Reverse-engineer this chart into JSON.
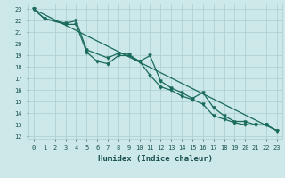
{
  "xlabel": "Humidex (Indice chaleur)",
  "xlim": [
    -0.5,
    23.5
  ],
  "ylim": [
    11.8,
    23.5
  ],
  "yticks": [
    12,
    13,
    14,
    15,
    16,
    17,
    18,
    19,
    20,
    21,
    22,
    23
  ],
  "xticks": [
    0,
    1,
    2,
    3,
    4,
    5,
    6,
    7,
    8,
    9,
    10,
    11,
    12,
    13,
    14,
    15,
    16,
    17,
    18,
    19,
    20,
    21,
    22,
    23
  ],
  "bg_color": "#cce8e8",
  "grid_color": "#aacece",
  "line_color": "#1a6b5a",
  "line_width": 0.9,
  "series1_x": [
    0,
    1,
    3,
    4,
    5,
    7,
    8,
    9,
    10,
    11,
    12,
    13,
    14,
    15,
    16,
    17,
    18,
    19,
    20,
    21,
    22,
    23
  ],
  "series1_y": [
    23.0,
    22.2,
    21.8,
    22.0,
    19.5,
    18.8,
    19.2,
    19.1,
    18.5,
    19.0,
    16.8,
    16.2,
    15.8,
    15.3,
    15.8,
    14.5,
    13.8,
    13.3,
    13.3,
    13.0,
    13.0,
    12.5
  ],
  "series2_x": [
    0,
    1,
    3,
    4,
    5,
    6,
    7,
    8,
    9,
    10,
    11,
    12,
    13,
    14,
    15,
    16,
    17,
    18,
    19,
    20,
    21,
    22,
    23
  ],
  "series2_y": [
    23.0,
    22.2,
    21.7,
    21.7,
    19.3,
    18.5,
    18.3,
    19.0,
    19.0,
    18.5,
    17.3,
    16.3,
    16.0,
    15.5,
    15.2,
    14.8,
    13.8,
    13.5,
    13.2,
    13.0,
    13.0,
    13.0,
    12.5
  ],
  "trend_x": [
    0,
    23
  ],
  "trend_y": [
    23.0,
    12.5
  ],
  "marker": "v",
  "marker_size": 2.2,
  "font_color": "#1a5050",
  "tick_fontsize": 5.0,
  "label_fontsize": 6.5
}
